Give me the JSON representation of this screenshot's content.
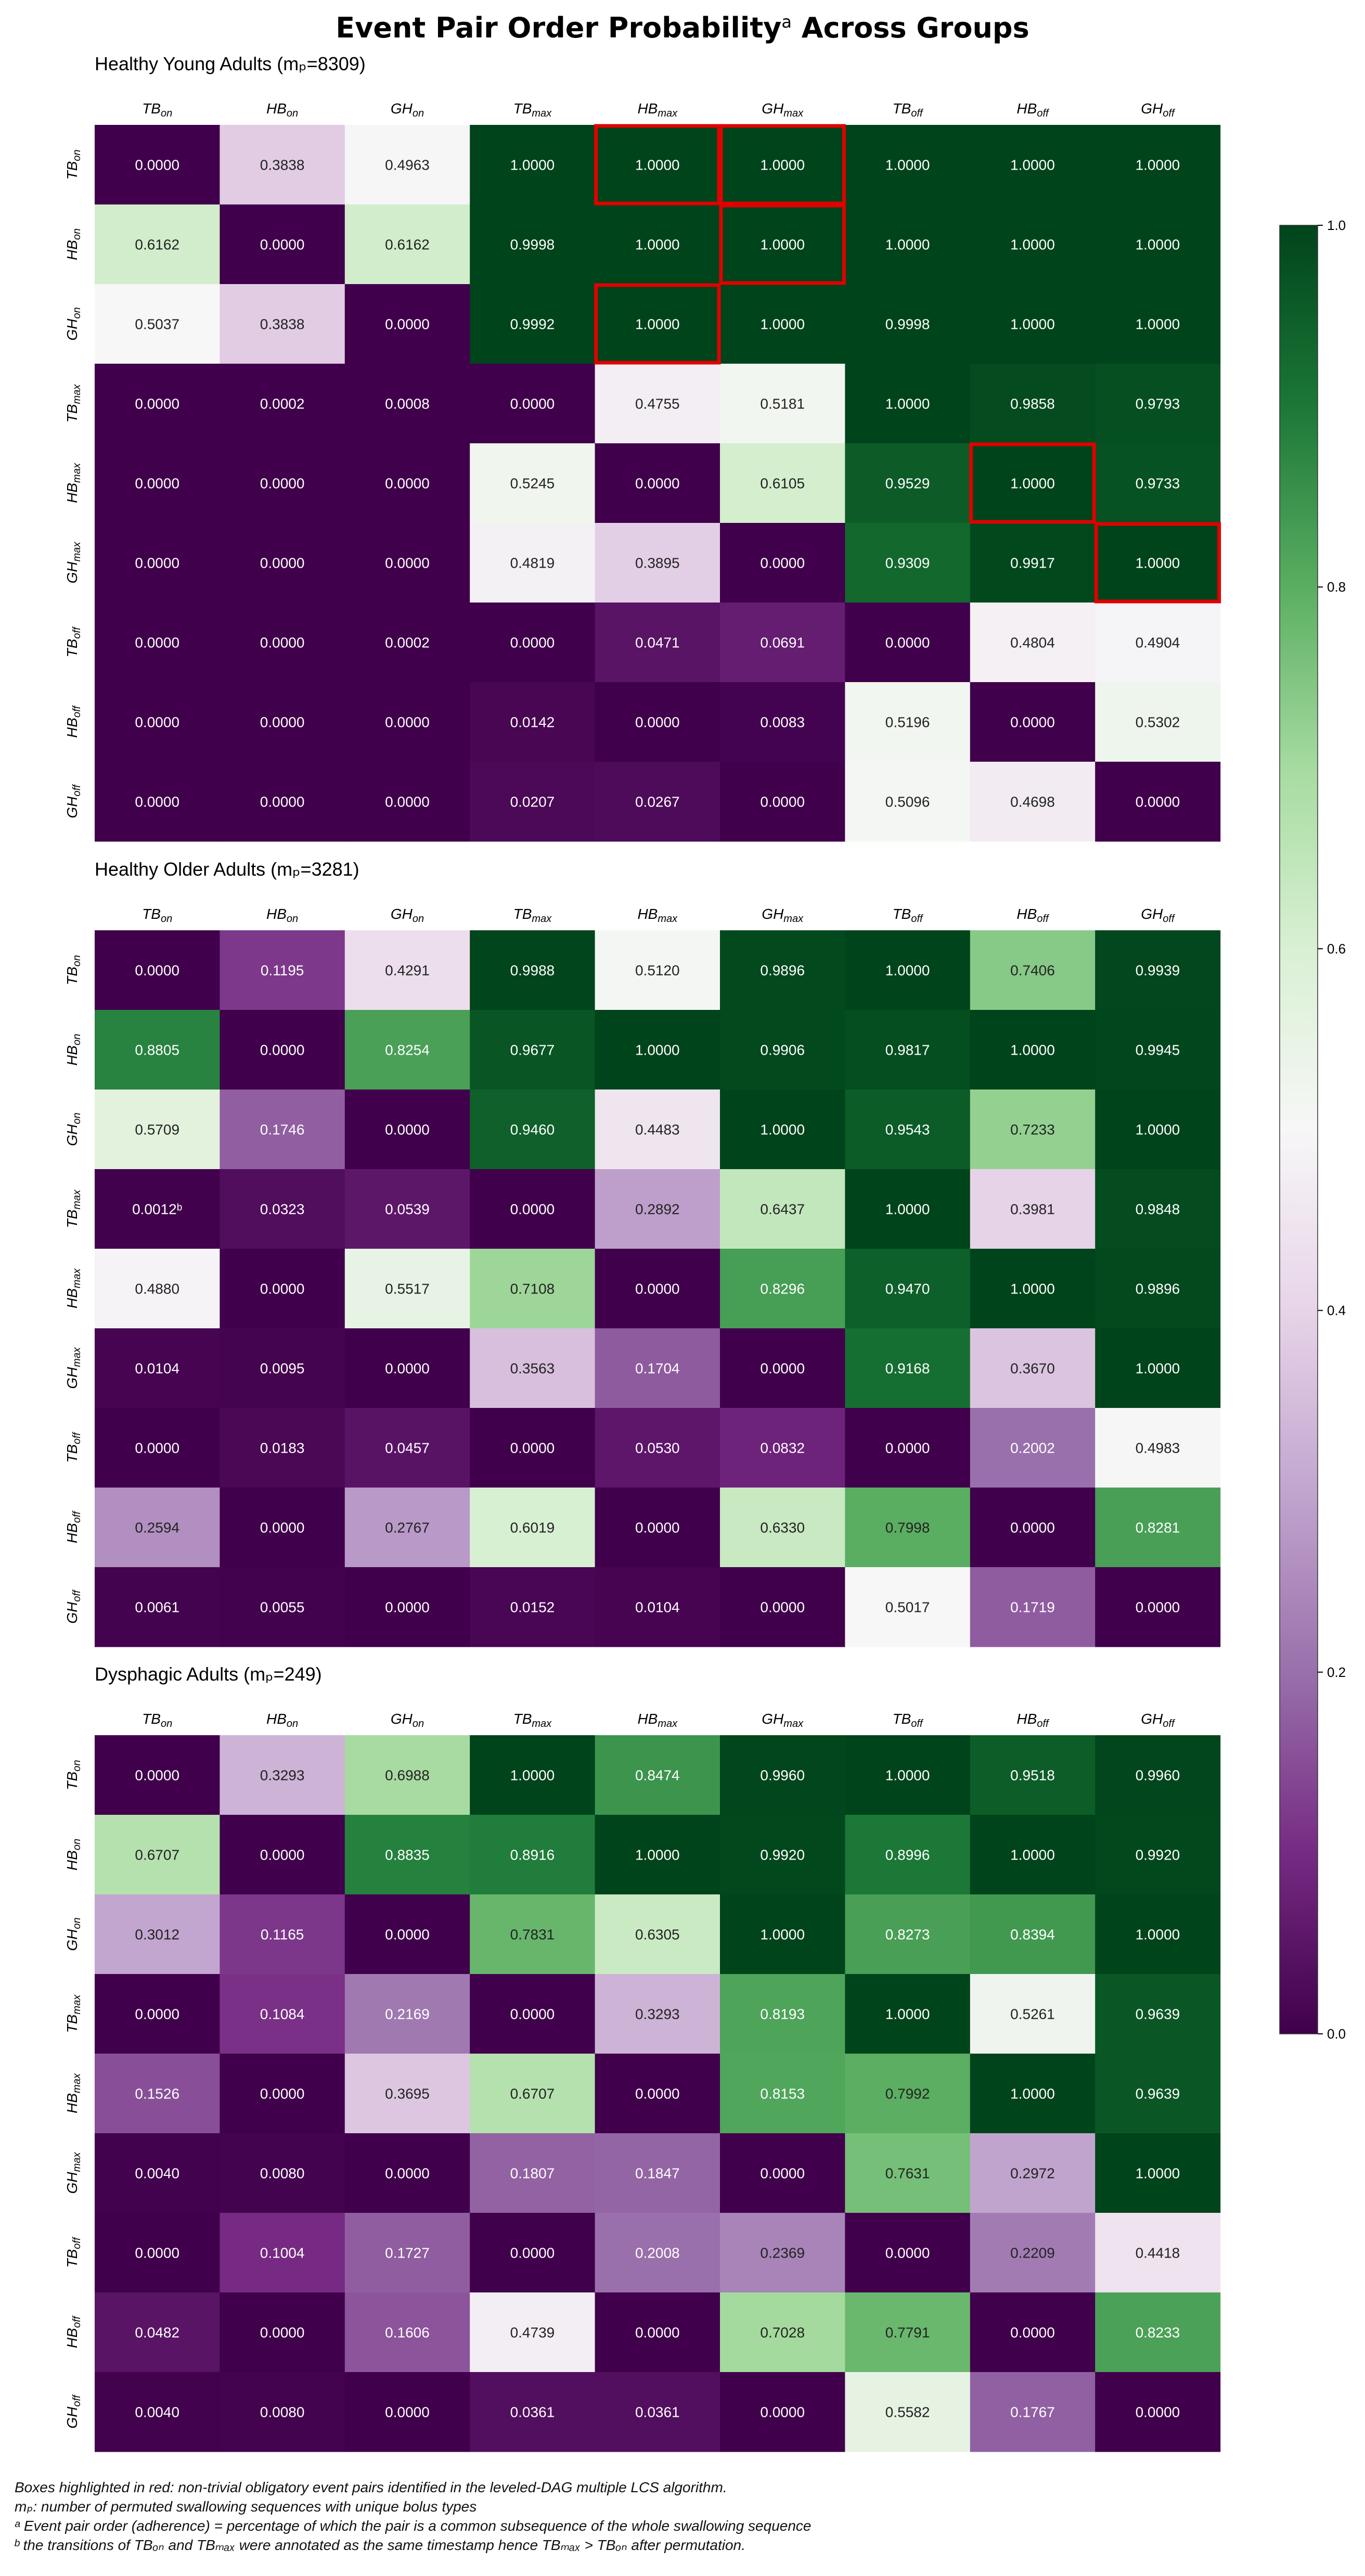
{
  "title": {
    "main": "Event Pair Order Probability",
    "superscript": "a",
    "suffix": " Across Groups"
  },
  "chart_data": {
    "type": "heatmap",
    "labels": [
      {
        "base": "TB",
        "sub": "on"
      },
      {
        "base": "HB",
        "sub": "on"
      },
      {
        "base": "GH",
        "sub": "on"
      },
      {
        "base": "TB",
        "sub": "max"
      },
      {
        "base": "HB",
        "sub": "max"
      },
      {
        "base": "GH",
        "sub": "max"
      },
      {
        "base": "TB",
        "sub": "off"
      },
      {
        "base": "HB",
        "sub": "off"
      },
      {
        "base": "GH",
        "sub": "off"
      }
    ],
    "colorbar": {
      "range": [
        0.0,
        1.0
      ],
      "ticks": [
        "0.0",
        "0.2",
        "0.4",
        "0.6",
        "0.8",
        "1.0"
      ],
      "colormap": "PRGn",
      "colors": [
        "#40004b",
        "#762a83",
        "#9970ab",
        "#c2a5cf",
        "#e7d4e8",
        "#f7f7f7",
        "#d9f0d3",
        "#a6dba0",
        "#5aae61",
        "#1b7837",
        "#00441b"
      ]
    },
    "highlight_color": "#e00000",
    "panels": [
      {
        "title": "Healthy Young Adults (mₚ=8309)",
        "values": [
          [
            0.0,
            0.3838,
            0.4963,
            1.0,
            1.0,
            1.0,
            1.0,
            1.0,
            1.0
          ],
          [
            0.6162,
            0.0,
            0.6162,
            0.9998,
            1.0,
            1.0,
            1.0,
            1.0,
            1.0
          ],
          [
            0.5037,
            0.3838,
            0.0,
            0.9992,
            1.0,
            1.0,
            0.9998,
            1.0,
            1.0
          ],
          [
            0.0,
            0.0002,
            0.0008,
            0.0,
            0.4755,
            0.5181,
            1.0,
            0.9858,
            0.9793
          ],
          [
            0.0,
            0.0,
            0.0,
            0.5245,
            0.0,
            0.6105,
            0.9529,
            1.0,
            0.9733
          ],
          [
            0.0,
            0.0,
            0.0,
            0.4819,
            0.3895,
            0.0,
            0.9309,
            0.9917,
            1.0
          ],
          [
            0.0,
            0.0,
            0.0002,
            0.0,
            0.0471,
            0.0691,
            0.0,
            0.4804,
            0.4904
          ],
          [
            0.0,
            0.0,
            0.0,
            0.0142,
            0.0,
            0.0083,
            0.5196,
            0.0,
            0.5302
          ],
          [
            0.0,
            0.0,
            0.0,
            0.0207,
            0.0267,
            0.0,
            0.5096,
            0.4698,
            0.0
          ]
        ],
        "text_overrides": [],
        "highlights": [
          [
            0,
            4
          ],
          [
            0,
            5
          ],
          [
            1,
            5
          ],
          [
            2,
            4
          ],
          [
            4,
            7
          ],
          [
            5,
            8
          ]
        ]
      },
      {
        "title": "Healthy Older Adults (mₚ=3281)",
        "values": [
          [
            0.0,
            0.1195,
            0.4291,
            0.9988,
            0.512,
            0.9896,
            1.0,
            0.7406,
            0.9939
          ],
          [
            0.8805,
            0.0,
            0.8254,
            0.9677,
            1.0,
            0.9906,
            0.9817,
            1.0,
            0.9945
          ],
          [
            0.5709,
            0.1746,
            0.0,
            0.946,
            0.4483,
            1.0,
            0.9543,
            0.7233,
            1.0
          ],
          [
            0.0012,
            0.0323,
            0.0539,
            0.0,
            0.2892,
            0.6437,
            1.0,
            0.3981,
            0.9848
          ],
          [
            0.488,
            0.0,
            0.5517,
            0.7108,
            0.0,
            0.8296,
            0.947,
            1.0,
            0.9896
          ],
          [
            0.0104,
            0.0095,
            0.0,
            0.3563,
            0.1704,
            0.0,
            0.9168,
            0.367,
            1.0
          ],
          [
            0.0,
            0.0183,
            0.0457,
            0.0,
            0.053,
            0.0832,
            0.0,
            0.2002,
            0.4983
          ],
          [
            0.2594,
            0.0,
            0.2767,
            0.6019,
            0.0,
            0.633,
            0.7998,
            0.0,
            0.8281
          ],
          [
            0.0061,
            0.0055,
            0.0,
            0.0152,
            0.0104,
            0.0,
            0.5017,
            0.1719,
            0.0
          ]
        ],
        "text_overrides": [
          {
            "row": 3,
            "col": 0,
            "text": "0.0012ᵇ"
          }
        ],
        "highlights": []
      },
      {
        "title": "Dysphagic Adults (mₚ=249)",
        "values": [
          [
            0.0,
            0.3293,
            0.6988,
            1.0,
            0.8474,
            0.996,
            1.0,
            0.9518,
            0.996
          ],
          [
            0.6707,
            0.0,
            0.8835,
            0.8916,
            1.0,
            0.992,
            0.8996,
            1.0,
            0.992
          ],
          [
            0.3012,
            0.1165,
            0.0,
            0.7831,
            0.6305,
            1.0,
            0.8273,
            0.8394,
            1.0
          ],
          [
            0.0,
            0.1084,
            0.2169,
            0.0,
            0.3293,
            0.8193,
            1.0,
            0.5261,
            0.9639
          ],
          [
            0.1526,
            0.0,
            0.3695,
            0.6707,
            0.0,
            0.8153,
            0.7992,
            1.0,
            0.9639
          ],
          [
            0.004,
            0.008,
            0.0,
            0.1807,
            0.1847,
            0.0,
            0.7631,
            0.2972,
            1.0
          ],
          [
            0.0,
            0.1004,
            0.1727,
            0.0,
            0.2008,
            0.2369,
            0.0,
            0.2209,
            0.4418
          ],
          [
            0.0482,
            0.0,
            0.1606,
            0.4739,
            0.0,
            0.7028,
            0.7791,
            0.0,
            0.8233
          ],
          [
            0.004,
            0.008,
            0.0,
            0.0361,
            0.0361,
            0.0,
            0.5582,
            0.1767,
            0.0
          ]
        ],
        "text_overrides": [],
        "highlights": []
      }
    ]
  },
  "footnotes": {
    "line1": "Boxes highlighted in red: non-trivial obligatory event pairs identified in the leveled-DAG multiple LCS algorithm.",
    "line2": "mₚ: number of permuted swallowing sequences with unique bolus types",
    "line3": "ᵃ Event pair order (adherence) = percentage of which the pair is a common subsequence of the whole swallowing sequence",
    "line4": "ᵇ the transitions of TBₒₙ and TBₘₐₓ were annotated as the same timestamp hence TBₘₐₓ > TBₒₙ after permutation."
  }
}
